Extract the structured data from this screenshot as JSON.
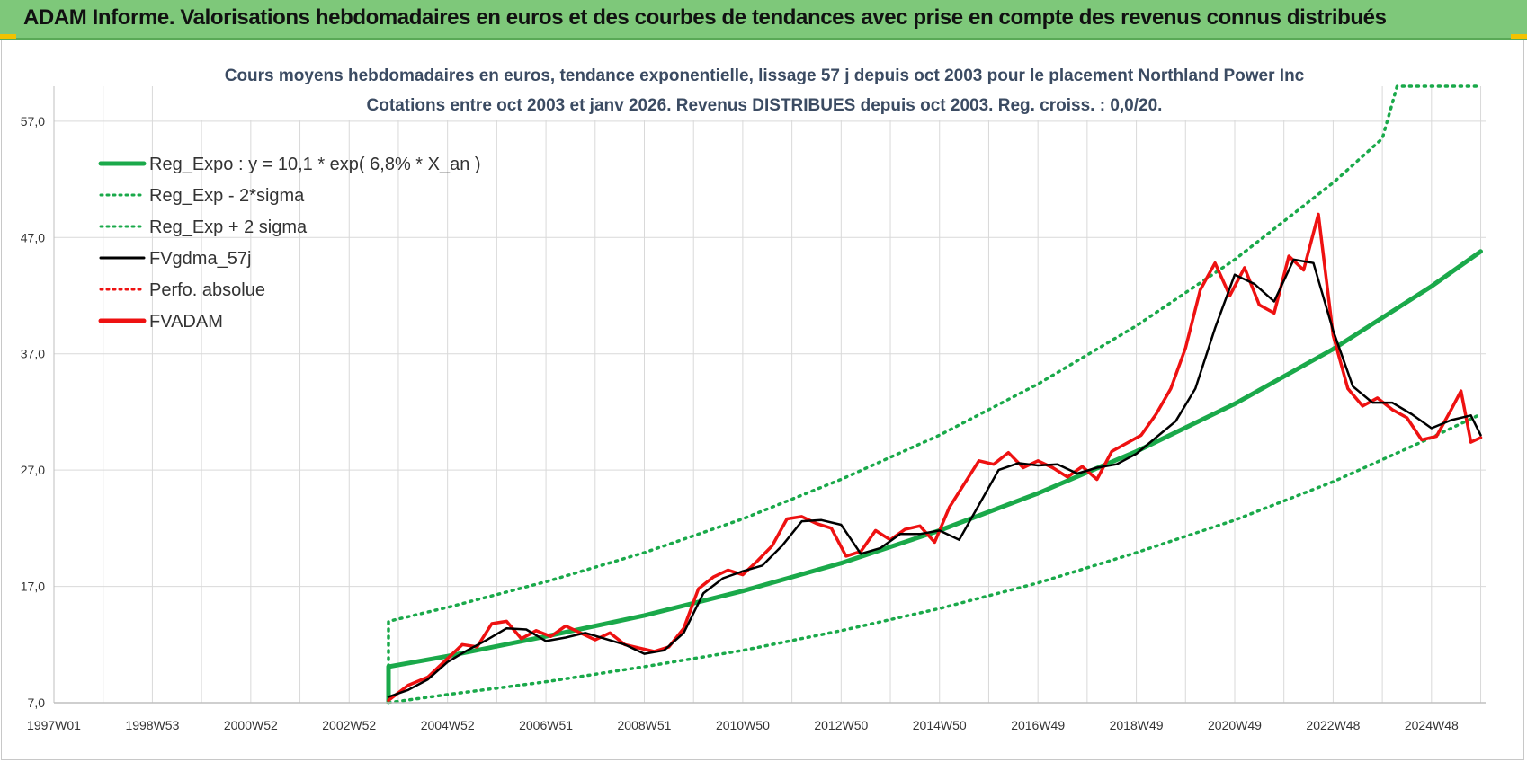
{
  "banner": {
    "title": "ADAM Informe. Valorisations hebdomadaires en euros et des courbes de tendances avec prise en compte des revenus connus distribués"
  },
  "colors": {
    "banner_bg": "#7ec87a",
    "reg_green": "#1aa94a",
    "sigma_green": "#1aa94a",
    "fvgdma_black": "#000000",
    "fvadam_red": "#ee1111",
    "perfo_red": "#ee1111",
    "grid": "#d9d9d9"
  },
  "chart_data": {
    "type": "line",
    "title_line1": "Cours moyens hebdomadaires en euros, tendance exponentielle, lissage 57 j depuis oct 2003 pour le placement Northland Power Inc",
    "title_line2": "Cotations entre oct 2003 et janv 2026. Revenus DISTRIBUES depuis oct 2003. Reg. croiss. : 0,0/20.",
    "x_tick_labels": [
      "1997W01",
      "1998W53",
      "2000W52",
      "2002W52",
      "2004W52",
      "2006W51",
      "2008W51",
      "2010W50",
      "2012W50",
      "2014W50",
      "2016W49",
      "2018W49",
      "2020W49",
      "2022W48",
      "2024W48"
    ],
    "x_ticks_year": [
      1997.0,
      1999.0,
      2001.0,
      2003.0,
      2005.0,
      2007.0,
      2009.0,
      2011.0,
      2013.0,
      2015.0,
      2017.0,
      2019.0,
      2021.0,
      2023.0,
      2025.0
    ],
    "xlim": [
      1997.0,
      2026.1
    ],
    "y_tick_labels": [
      "7,0",
      "17,0",
      "27,0",
      "37,0",
      "47,0",
      "57,0"
    ],
    "y_ticks": [
      7,
      17,
      27,
      37,
      47,
      57
    ],
    "ylim": [
      7,
      60
    ],
    "grid": true,
    "legend_placement": "top-left",
    "legend": [
      {
        "label": "Reg_Expo : y = 10,1 * exp( 6,8% *  X_an )",
        "style": "solid-thick",
        "color": "#1aa94a"
      },
      {
        "label": "Reg_Exp - 2*sigma",
        "style": "dotted",
        "color": "#1aa94a"
      },
      {
        "label": "Reg_Exp + 2 sigma",
        "style": "dotted",
        "color": "#1aa94a"
      },
      {
        "label": "FVgdma_57j",
        "style": "solid",
        "color": "#000000"
      },
      {
        "label": "Perfo. absolue",
        "style": "dotted",
        "color": "#ee1111"
      },
      {
        "label": "FVADAM",
        "style": "solid-thick",
        "color": "#ee1111"
      }
    ],
    "series": [
      {
        "name": "Reg_Expo : y = 10,1 * exp( 6,8% *  X_an )",
        "x": [
          2003.8,
          2005.0,
          2007.0,
          2009.0,
          2011.0,
          2013.0,
          2015.0,
          2017.0,
          2019.0,
          2021.0,
          2023.0,
          2025.0,
          2026.0
        ],
        "y": [
          10.1,
          11.0,
          12.7,
          14.5,
          16.6,
          19.0,
          21.8,
          25.0,
          28.6,
          32.7,
          37.4,
          42.8,
          45.8
        ]
      },
      {
        "name": "Reg_Exp - 2*sigma",
        "x": [
          2003.8,
          2005.0,
          2007.0,
          2009.0,
          2011.0,
          2013.0,
          2015.0,
          2017.0,
          2019.0,
          2021.0,
          2023.0,
          2025.0,
          2026.0
        ],
        "y": [
          7.0,
          7.7,
          8.8,
          10.1,
          11.5,
          13.2,
          15.1,
          17.3,
          19.9,
          22.7,
          26.0,
          29.8,
          31.8
        ]
      },
      {
        "name": "Reg_Exp + 2 sigma",
        "x": [
          2003.8,
          2005.0,
          2007.0,
          2009.0,
          2011.0,
          2013.0,
          2015.0,
          2017.0,
          2019.0,
          2021.0,
          2023.0,
          2024.0,
          2024.3,
          2026.0
        ],
        "y": [
          14.0,
          15.2,
          17.4,
          19.9,
          22.8,
          26.2,
          30.0,
          34.4,
          39.4,
          45.1,
          51.7,
          55.5,
          60.0,
          60.0
        ]
      },
      {
        "name": "FVgdma_57j",
        "x": [
          2003.8,
          2004.2,
          2004.6,
          2005.0,
          2005.4,
          2005.8,
          2006.2,
          2006.6,
          2007.0,
          2007.4,
          2007.8,
          2008.2,
          2008.6,
          2009.0,
          2009.4,
          2009.8,
          2010.2,
          2010.6,
          2011.0,
          2011.4,
          2011.8,
          2012.2,
          2012.6,
          2013.0,
          2013.4,
          2013.8,
          2014.2,
          2014.6,
          2015.0,
          2015.4,
          2015.8,
          2016.2,
          2016.6,
          2017.0,
          2017.4,
          2017.8,
          2018.2,
          2018.6,
          2019.0,
          2019.4,
          2019.8,
          2020.2,
          2020.6,
          2021.0,
          2021.4,
          2021.8,
          2022.2,
          2022.6,
          2023.0,
          2023.4,
          2023.8,
          2024.2,
          2024.6,
          2025.0,
          2025.4,
          2025.8,
          2026.0
        ],
        "y": [
          7.5,
          8.1,
          9.0,
          10.5,
          11.5,
          12.4,
          13.4,
          13.3,
          12.3,
          12.6,
          13.0,
          12.5,
          12.0,
          11.2,
          11.5,
          13.0,
          16.4,
          17.7,
          18.3,
          18.8,
          20.5,
          22.6,
          22.7,
          22.3,
          19.8,
          20.3,
          21.5,
          21.5,
          21.8,
          21.0,
          24.0,
          27.0,
          27.6,
          27.4,
          27.5,
          26.7,
          27.2,
          27.5,
          28.4,
          29.8,
          31.2,
          34.0,
          39.2,
          43.8,
          43.0,
          41.5,
          45.1,
          44.8,
          39.0,
          34.2,
          32.8,
          32.8,
          31.8,
          30.6,
          31.3,
          31.7,
          30.0
        ]
      },
      {
        "name": "FVADAM",
        "x": [
          2003.8,
          2004.2,
          2004.6,
          2005.0,
          2005.3,
          2005.6,
          2005.9,
          2006.2,
          2006.5,
          2006.8,
          2007.1,
          2007.4,
          2007.7,
          2008.0,
          2008.3,
          2008.6,
          2008.9,
          2009.2,
          2009.5,
          2009.8,
          2010.1,
          2010.4,
          2010.7,
          2011.0,
          2011.3,
          2011.6,
          2011.9,
          2012.2,
          2012.5,
          2012.8,
          2013.1,
          2013.4,
          2013.7,
          2014.0,
          2014.3,
          2014.6,
          2014.9,
          2015.2,
          2015.5,
          2015.8,
          2016.1,
          2016.4,
          2016.7,
          2017.0,
          2017.3,
          2017.6,
          2017.9,
          2018.2,
          2018.5,
          2018.8,
          2019.1,
          2019.4,
          2019.7,
          2020.0,
          2020.3,
          2020.6,
          2020.9,
          2021.2,
          2021.5,
          2021.8,
          2022.1,
          2022.4,
          2022.7,
          2023.0,
          2023.3,
          2023.6,
          2023.9,
          2024.2,
          2024.5,
          2024.8,
          2025.1,
          2025.4,
          2025.6,
          2025.8,
          2026.0
        ],
        "y": [
          7.2,
          8.5,
          9.2,
          10.8,
          12.0,
          11.8,
          13.8,
          14.0,
          12.5,
          13.2,
          12.7,
          13.6,
          13.0,
          12.4,
          13.0,
          12.0,
          11.7,
          11.4,
          11.8,
          13.4,
          16.8,
          17.8,
          18.4,
          18.0,
          19.2,
          20.5,
          22.8,
          23.0,
          22.4,
          22.0,
          19.6,
          20.0,
          21.8,
          21.0,
          21.9,
          22.2,
          20.8,
          23.8,
          25.8,
          27.8,
          27.5,
          28.5,
          27.2,
          27.8,
          27.2,
          26.4,
          27.3,
          26.2,
          28.6,
          29.3,
          30.0,
          31.8,
          34.0,
          37.5,
          42.5,
          44.8,
          42.0,
          44.4,
          41.2,
          40.5,
          45.4,
          44.2,
          49.0,
          38.6,
          34.0,
          32.5,
          33.2,
          32.2,
          31.5,
          29.6,
          29.9,
          32.2,
          33.8,
          29.4,
          29.8
        ]
      }
    ]
  }
}
